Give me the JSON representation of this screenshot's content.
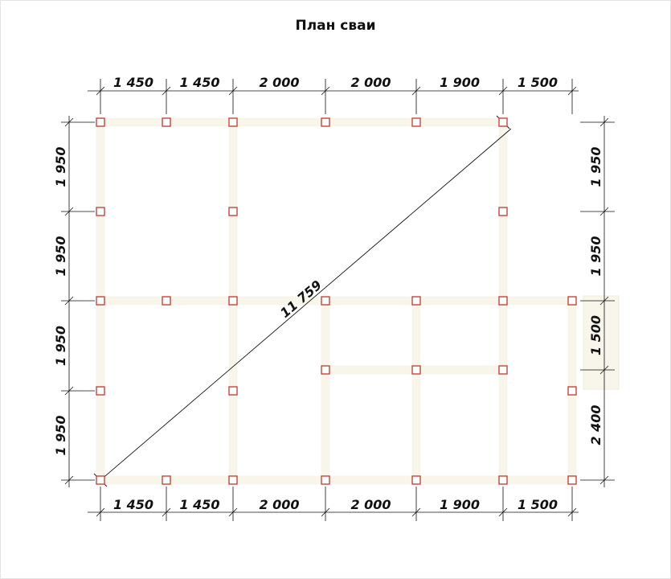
{
  "title": "План сваи",
  "colors": {
    "beam": "#f8f6ea",
    "pile": "#c0392b",
    "line": "#111111",
    "frame": "#e3e3e3"
  },
  "dimensions": {
    "top": [
      "1 450",
      "1 450",
      "2 000",
      "2 000",
      "1 900",
      "1 500"
    ],
    "bottom": [
      "1 450",
      "1 450",
      "2 000",
      "2 000",
      "1 900",
      "1 500"
    ],
    "left": [
      "1 950",
      "1 950",
      "1 950",
      "1 950"
    ],
    "right": [
      "1 950",
      "1 950",
      "1 500",
      "2 400"
    ],
    "diagonal": "11 759"
  }
}
